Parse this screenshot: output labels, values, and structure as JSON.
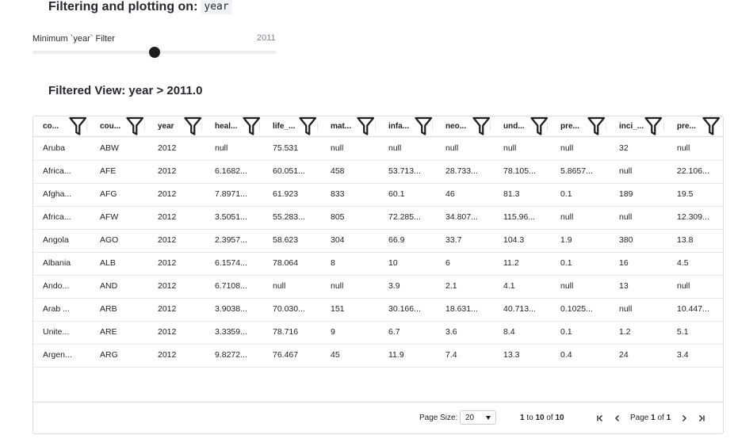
{
  "header": {
    "title": "Filtering and plotting on:",
    "field": "year"
  },
  "slider": {
    "label": "Minimum `year` Filter",
    "value": "2011",
    "position": 0.5
  },
  "subheader": {
    "title": "Filtered View: year > 2011.0"
  },
  "table": {
    "columns": [
      "co...",
      "cou...",
      "year",
      "heal...",
      "life_...",
      "mat...",
      "infa...",
      "neo...",
      "und...",
      "pre...",
      "inci_...",
      "pre..."
    ],
    "rows": [
      [
        "Aruba",
        "ABW",
        "2012",
        "null",
        "75.531",
        "null",
        "null",
        "null",
        "null",
        "null",
        "32",
        "null"
      ],
      [
        "Africa...",
        "AFE",
        "2012",
        "6.1682...",
        "60.051...",
        "458",
        "53.713...",
        "28.733...",
        "78.105...",
        "5.8657...",
        "null",
        "22.106..."
      ],
      [
        "Afgha...",
        "AFG",
        "2012",
        "7.8971...",
        "61.923",
        "833",
        "60.1",
        "46",
        "81.3",
        "0.1",
        "189",
        "19.5"
      ],
      [
        "Africa...",
        "AFW",
        "2012",
        "3.5051...",
        "55.283...",
        "805",
        "72.285...",
        "34.807...",
        "115.96...",
        "null",
        "null",
        "12.309..."
      ],
      [
        "Angola",
        "AGO",
        "2012",
        "2.3957...",
        "58.623",
        "304",
        "66.9",
        "33.7",
        "104.3",
        "1.9",
        "380",
        "13.8"
      ],
      [
        "Albania",
        "ALB",
        "2012",
        "6.1574...",
        "78.064",
        "8",
        "10",
        "6",
        "11.2",
        "0.1",
        "16",
        "4.5"
      ],
      [
        "Ando...",
        "AND",
        "2012",
        "6.7108...",
        "null",
        "null",
        "3.9",
        "2.1",
        "4.1",
        "null",
        "13",
        "null"
      ],
      [
        "Arab ...",
        "ARB",
        "2012",
        "3.9038...",
        "70.030...",
        "151",
        "30.166...",
        "18.631...",
        "40.713...",
        "0.1025...",
        "null",
        "10.447..."
      ],
      [
        "Unite...",
        "ARE",
        "2012",
        "3.3359...",
        "78.716",
        "9",
        "6.7",
        "3.6",
        "8.4",
        "0.1",
        "1.2",
        "5.1"
      ],
      [
        "Argen...",
        "ARG",
        "2012",
        "9.8272...",
        "76.467",
        "45",
        "11.9",
        "7.4",
        "13.3",
        "0.4",
        "24",
        "3.4"
      ]
    ]
  },
  "pagination": {
    "page_size_label": "Page Size:",
    "page_size_value": "20",
    "range_start": "1",
    "range_to": "to",
    "range_end": "10",
    "range_of": "of",
    "range_total": "10",
    "page_prefix": "Page",
    "page_current": "1",
    "page_of": "of",
    "page_total": "1"
  },
  "icons": {
    "filter": "filter-icon",
    "first": "first-page-icon",
    "prev": "previous-page-icon",
    "next": "next-page-icon",
    "last": "last-page-icon",
    "caret": "chevron-down-icon"
  }
}
